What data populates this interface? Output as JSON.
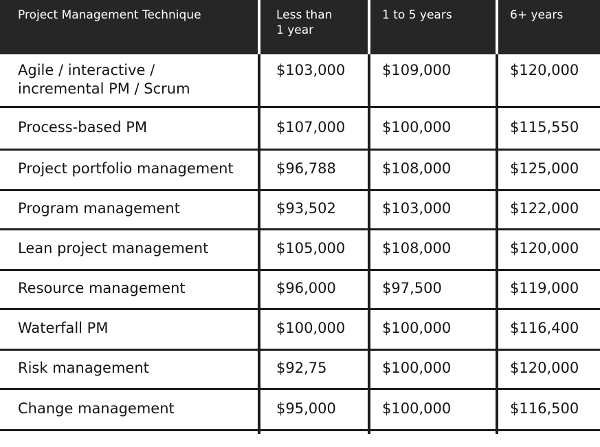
{
  "table": {
    "headers": [
      "Project Management Technique",
      "Less than\n1 year",
      "1 to 5 years",
      "6+ years"
    ],
    "rows": [
      {
        "technique": "Agile / interactive / incremental PM / Scrum",
        "less_than_1": "$103,000",
        "one_to_five": "$109,000",
        "six_plus": "$120,000"
      },
      {
        "technique": "Process-based PM",
        "less_than_1": "$107,000",
        "one_to_five": "$100,000",
        "six_plus": "$115,550"
      },
      {
        "technique": "Project portfolio management",
        "less_than_1": "$96,788",
        "one_to_five": "$108,000",
        "six_plus": "$125,000"
      },
      {
        "technique": "Program management",
        "less_than_1": "$93,502",
        "one_to_five": "$103,000",
        "six_plus": "$122,000"
      },
      {
        "technique": "Lean project management",
        "less_than_1": "$105,000",
        "one_to_five": "$108,000",
        "six_plus": "$120,000"
      },
      {
        "technique": "Resource management",
        "less_than_1": "$96,000",
        "one_to_five": "$97,500",
        "six_plus": "$119,000"
      },
      {
        "technique": "Waterfall PM",
        "less_than_1": "$100,000",
        "one_to_five": "$100,000",
        "six_plus": "$116,400"
      },
      {
        "technique": "Risk management",
        "less_than_1": "$92,75",
        "one_to_five": "$100,000",
        "six_plus": "$120,000"
      },
      {
        "technique": "Change management",
        "less_than_1": "$95,000",
        "one_to_five": "$100,000",
        "six_plus": "$116,500"
      }
    ]
  },
  "colors": {
    "header_bg": "#262626",
    "header_text": "#ffffff",
    "rule": "#1c1c1c"
  }
}
